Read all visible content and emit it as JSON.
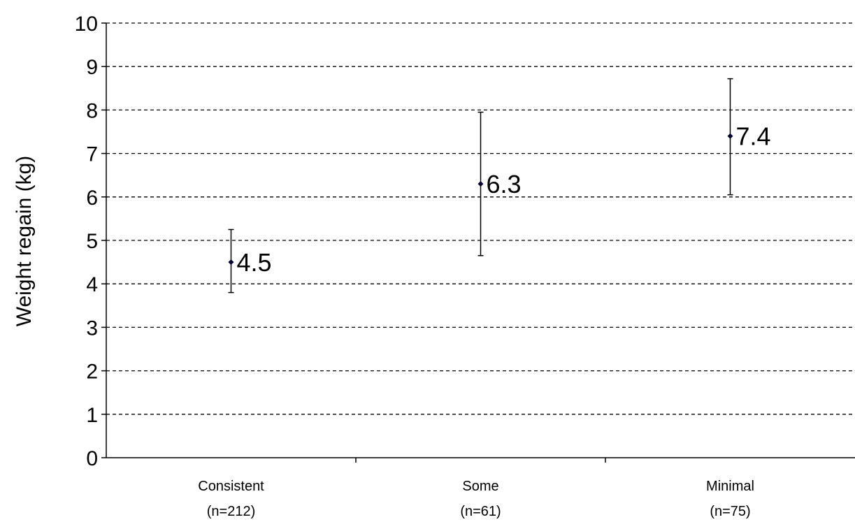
{
  "chart_data": {
    "type": "scatter",
    "title": "",
    "xlabel": "",
    "ylabel": "Weight regain (kg)",
    "ylim": [
      0,
      10
    ],
    "y_ticks": [
      "0",
      "1",
      "2",
      "3",
      "4",
      "5",
      "6",
      "7",
      "8",
      "9",
      "10"
    ],
    "grid": "horizontal dashed",
    "categories": [
      {
        "line1": "Consistent",
        "line2": "(n=212)"
      },
      {
        "line1": "Some",
        "line2": "(n=61)"
      },
      {
        "line1": "Minimal",
        "line2": "(n=75)"
      }
    ],
    "values": [
      4.5,
      6.3,
      7.4
    ],
    "value_labels": [
      "4.5",
      "6.3",
      "7.4"
    ],
    "error_low": [
      3.8,
      4.65,
      6.05
    ],
    "error_high": [
      5.25,
      7.95,
      8.72
    ]
  },
  "colors": {
    "axis": "#000000",
    "grid": "#000000",
    "marker": "#000033",
    "background": "#ffffff"
  }
}
